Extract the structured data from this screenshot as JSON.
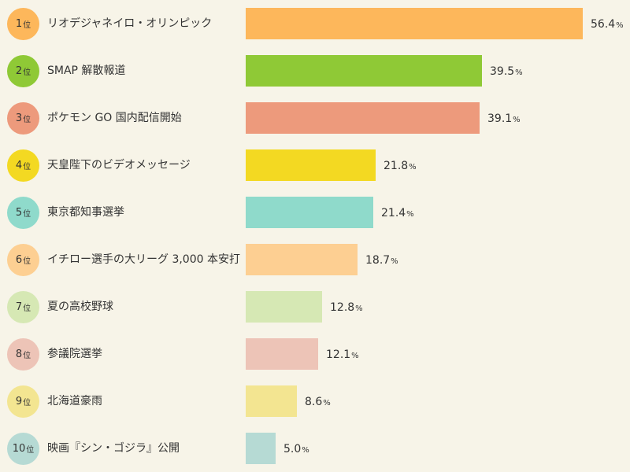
{
  "chart_data": {
    "type": "bar",
    "orientation": "horizontal",
    "xlim": [
      0,
      56.4
    ],
    "rank_suffix": "位",
    "unit": "%",
    "items": [
      {
        "rank": "1",
        "label": "リオデジャネイロ・オリンピック",
        "value": 56.4,
        "value_text": "56.4",
        "color": "#fdb75b",
        "rank_color": "#fdb75b"
      },
      {
        "rank": "2",
        "label": "SMAP 解散報道",
        "value": 39.5,
        "value_text": "39.5",
        "color": "#8fc936",
        "rank_color": "#8fc936"
      },
      {
        "rank": "3",
        "label": "ポケモン GO 国内配信開始",
        "value": 39.1,
        "value_text": "39.1",
        "color": "#ed9a7c",
        "rank_color": "#ed9a7c"
      },
      {
        "rank": "4",
        "label": "天皇陛下のビデオメッセージ",
        "value": 21.8,
        "value_text": "21.8",
        "color": "#f3d922",
        "rank_color": "#f3d922"
      },
      {
        "rank": "5",
        "label": "東京都知事選挙",
        "value": 21.4,
        "value_text": "21.4",
        "color": "#8fdacb",
        "rank_color": "#8fdacb"
      },
      {
        "rank": "6",
        "label": "イチロー選手の大リーグ 3,000 本安打",
        "value": 18.7,
        "value_text": "18.7",
        "color": "#fdcf92",
        "rank_color": "#fdcf92"
      },
      {
        "rank": "7",
        "label": "夏の高校野球",
        "value": 12.8,
        "value_text": "12.8",
        "color": "#d6e8b4",
        "rank_color": "#d6e8b4"
      },
      {
        "rank": "8",
        "label": "参議院選挙",
        "value": 12.1,
        "value_text": "12.1",
        "color": "#edc4b7",
        "rank_color": "#edc4b7"
      },
      {
        "rank": "9",
        "label": "北海道豪雨",
        "value": 8.6,
        "value_text": "8.6",
        "color": "#f3e591",
        "rank_color": "#f3e591"
      },
      {
        "rank": "10",
        "label": "映画『シン・ゴジラ』公開",
        "value": 5.0,
        "value_text": "5.0",
        "color": "#b6dad4",
        "rank_color": "#b6dad4"
      }
    ]
  }
}
